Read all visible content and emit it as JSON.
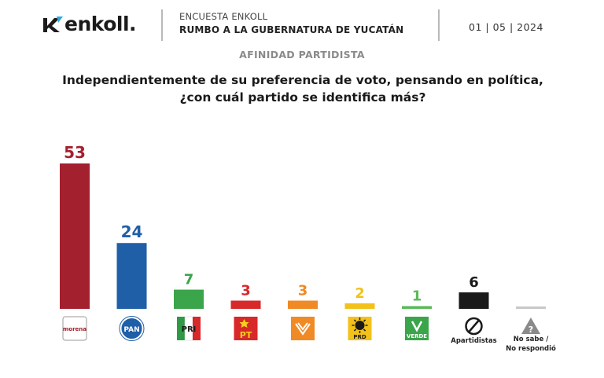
{
  "header": {
    "brand": "enkoll.",
    "survey_name": "ENCUESTA ENKOLL",
    "survey_subtitle": "RUMBO A LA GUBERNATURA DE YUCATÁN",
    "date": "01 | 05 | 2024"
  },
  "section_title": "AFINIDAD PARTIDISTA",
  "question_line1": "Independientemente de su preferencia de voto, pensando en política,",
  "question_line2": "¿con cuál partido se identifica más?",
  "chart_data": {
    "type": "bar",
    "categories": [
      "morena",
      "PAN",
      "PRI",
      "PT",
      "MC",
      "PRD",
      "VERDE",
      "Apartidistas",
      "No sabe / No respondió"
    ],
    "values": [
      53,
      24,
      7,
      3,
      3,
      2,
      1,
      6,
      0
    ],
    "value_labels": [
      "53",
      "24",
      "7",
      "3",
      "3",
      "2",
      "1",
      "6",
      ""
    ],
    "category_labels": [
      "",
      "",
      "",
      "",
      "",
      "",
      "",
      "Apartidistas",
      "No sabe / No respondió"
    ],
    "logo_texts": [
      "morena",
      "PAN",
      "PRI",
      "PT",
      "",
      "PRD",
      "VERDE",
      "",
      "?"
    ],
    "colors": [
      "#a3202f",
      "#1f5fa8",
      "#3aa54a",
      "#d8282a",
      "#f08a24",
      "#f3c11a",
      "#5cb95a",
      "#1a1a1a",
      "#c8c8c8"
    ],
    "ylim": [
      0,
      55
    ],
    "grid": false
  }
}
